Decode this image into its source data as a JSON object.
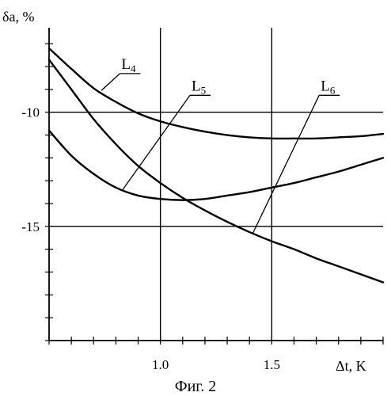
{
  "chart_data": {
    "type": "line",
    "title": "",
    "caption": "Фиг. 2",
    "xlabel": "Δt, K",
    "ylabel": "δa, %",
    "xlim": [
      0.5,
      2.0
    ],
    "ylim": [
      -20,
      -6.3
    ],
    "grid": true,
    "x_ticks": [
      {
        "value": 1.0,
        "label": "1.0"
      },
      {
        "value": 1.5,
        "label": "1.5"
      }
    ],
    "y_ticks": [
      {
        "value": -10,
        "label": "-10"
      },
      {
        "value": -15,
        "label": "-15"
      }
    ],
    "series": [
      {
        "name": "L4",
        "label_main": "L",
        "label_sub": "4",
        "x": [
          0.5,
          0.6,
          0.7,
          0.8,
          0.9,
          1.0,
          1.1,
          1.2,
          1.3,
          1.4,
          1.5,
          1.6,
          1.7,
          1.8,
          1.9,
          2.0
        ],
        "y": [
          -7.2,
          -8.1,
          -8.95,
          -9.55,
          -10.05,
          -10.4,
          -10.65,
          -10.85,
          -11.0,
          -11.1,
          -11.15,
          -11.15,
          -11.15,
          -11.1,
          -11.05,
          -10.95
        ]
      },
      {
        "name": "L5",
        "label_main": "L",
        "label_sub": "5",
        "x": [
          0.5,
          0.6,
          0.7,
          0.8,
          0.9,
          1.0,
          1.1,
          1.2,
          1.3,
          1.4,
          1.5,
          1.6,
          1.7,
          1.8,
          1.9,
          2.0
        ],
        "y": [
          -10.8,
          -11.9,
          -12.7,
          -13.3,
          -13.65,
          -13.8,
          -13.85,
          -13.8,
          -13.65,
          -13.5,
          -13.3,
          -13.1,
          -12.85,
          -12.6,
          -12.3,
          -12.0
        ]
      },
      {
        "name": "L6",
        "label_main": "L",
        "label_sub": "6",
        "x": [
          0.5,
          0.6,
          0.7,
          0.8,
          0.9,
          1.0,
          1.1,
          1.2,
          1.3,
          1.4,
          1.5,
          1.6,
          1.7,
          1.8,
          1.9,
          2.0
        ],
        "y": [
          -7.7,
          -9.0,
          -10.3,
          -11.4,
          -12.35,
          -13.1,
          -13.75,
          -14.3,
          -14.8,
          -15.25,
          -15.65,
          -16.0,
          -16.4,
          -16.75,
          -17.1,
          -17.45
        ]
      }
    ],
    "annotations": [
      {
        "series": "L4",
        "label_at": [
          0.825,
          -8.1
        ],
        "leader_to": [
          0.735,
          -9.05
        ]
      },
      {
        "series": "L5",
        "label_at": [
          1.14,
          -9.05
        ],
        "leader_to": [
          0.83,
          -13.4
        ]
      },
      {
        "series": "L6",
        "label_at": [
          1.72,
          -9.05
        ],
        "leader_to": [
          1.415,
          -15.3
        ]
      }
    ]
  }
}
